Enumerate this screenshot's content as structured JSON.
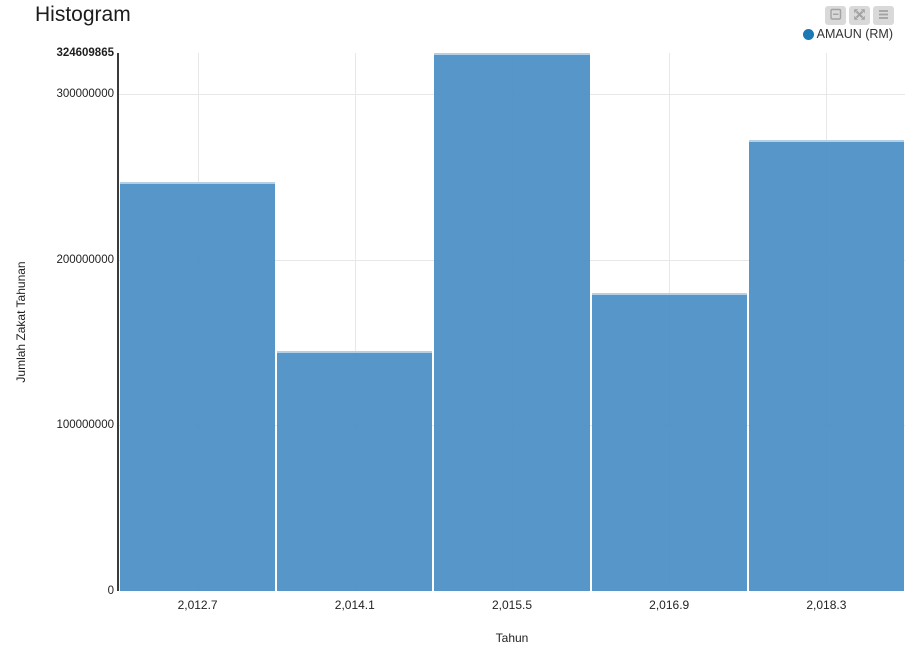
{
  "header": {
    "title": "Histogram"
  },
  "toolbar": {
    "buttons": [
      {
        "icon": "minus-square-icon"
      },
      {
        "icon": "expand-arrows-icon"
      },
      {
        "icon": "menu-icon"
      }
    ]
  },
  "legend": {
    "items": [
      {
        "label": "AMAUN (RM)",
        "color": "#1b79b5"
      }
    ]
  },
  "chart_data": {
    "type": "bar",
    "title": "Histogram",
    "categories": [
      "2,012.7",
      "2,014.1",
      "2,015.5",
      "2,016.9",
      "2,018.3"
    ],
    "series": [
      {
        "name": "AMAUN (RM)",
        "values": [
          247000000,
          145000000,
          324609865,
          180000000,
          272000000
        ]
      }
    ],
    "xlabel": "Tahun",
    "ylabel": "Jumlah Zakat Tahunan",
    "ylim": [
      0,
      324609865
    ],
    "yticks": [
      {
        "value": 0,
        "label": "0"
      },
      {
        "value": 100000000,
        "label": "100000000"
      },
      {
        "value": 200000000,
        "label": "200000000"
      },
      {
        "value": 300000000,
        "label": "300000000"
      },
      {
        "value": 324609865,
        "label": "324609865",
        "bold": true
      }
    ],
    "grid": true,
    "legend_position": "top-right",
    "bar_color": "#5796c8",
    "axis_color": "#3a3a3a",
    "grid_color": "#e7e7e7"
  }
}
